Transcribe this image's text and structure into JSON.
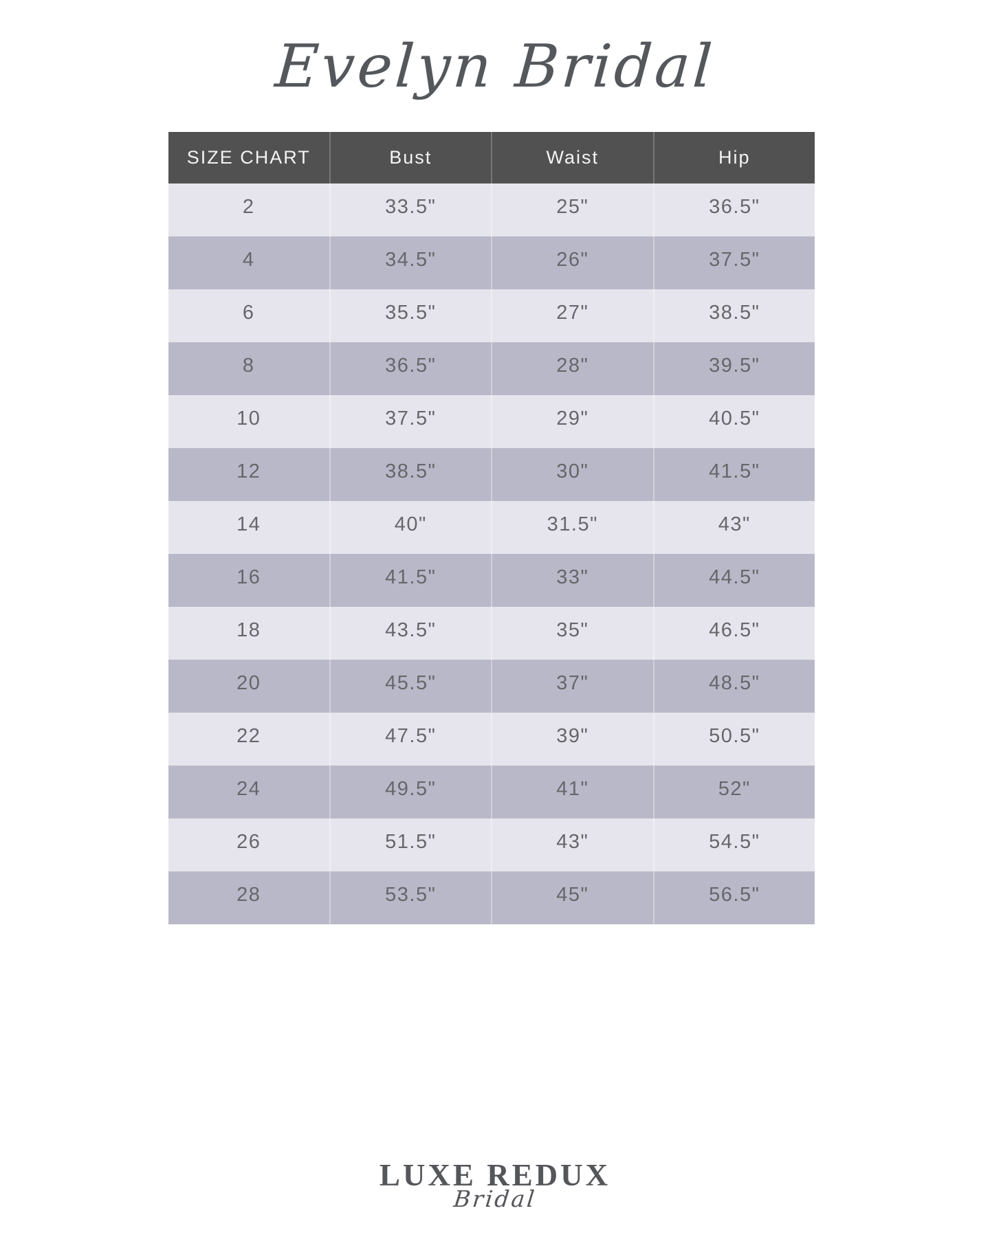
{
  "brand": {
    "title": "Evelyn Bridal"
  },
  "chart_data": {
    "type": "table",
    "title": "Evelyn Bridal size chart",
    "columns": [
      "SIZE CHART",
      "Bust",
      "Waist",
      "Hip"
    ],
    "rows": [
      [
        "2",
        "33.5\"",
        "25\"",
        "36.5\""
      ],
      [
        "4",
        "34.5\"",
        "26\"",
        "37.5\""
      ],
      [
        "6",
        "35.5\"",
        "27\"",
        "38.5\""
      ],
      [
        "8",
        "36.5\"",
        "28\"",
        "39.5\""
      ],
      [
        "10",
        "37.5\"",
        "29\"",
        "40.5\""
      ],
      [
        "12",
        "38.5\"",
        "30\"",
        "41.5\""
      ],
      [
        "14",
        "40\"",
        "31.5\"",
        "43\""
      ],
      [
        "16",
        "41.5\"",
        "33\"",
        "44.5\""
      ],
      [
        "18",
        "43.5\"",
        "35\"",
        "46.5\""
      ],
      [
        "20",
        "45.5\"",
        "37\"",
        "48.5\""
      ],
      [
        "22",
        "47.5\"",
        "39\"",
        "50.5\""
      ],
      [
        "24",
        "49.5\"",
        "41\"",
        "52\""
      ],
      [
        "26",
        "51.5\"",
        "43\"",
        "54.5\""
      ],
      [
        "28",
        "53.5\"",
        "45\"",
        "56.5\""
      ]
    ],
    "layout": {
      "header_position": "top",
      "row_striping": "light-then-dark",
      "grid": "faint-white-column-separators"
    }
  },
  "footer": {
    "logo_main": "LUXE REDUX",
    "logo_sub": "Bridal"
  },
  "colors": {
    "page_bg": "#ffffff",
    "header_bg": "#515151",
    "header_text": "#f4f3f5",
    "row_light": "#e6e5ed",
    "row_dark": "#b9b8c8",
    "cell_text": "#66666b",
    "brand_text": "#54585c",
    "logo_text": "#55565a"
  }
}
